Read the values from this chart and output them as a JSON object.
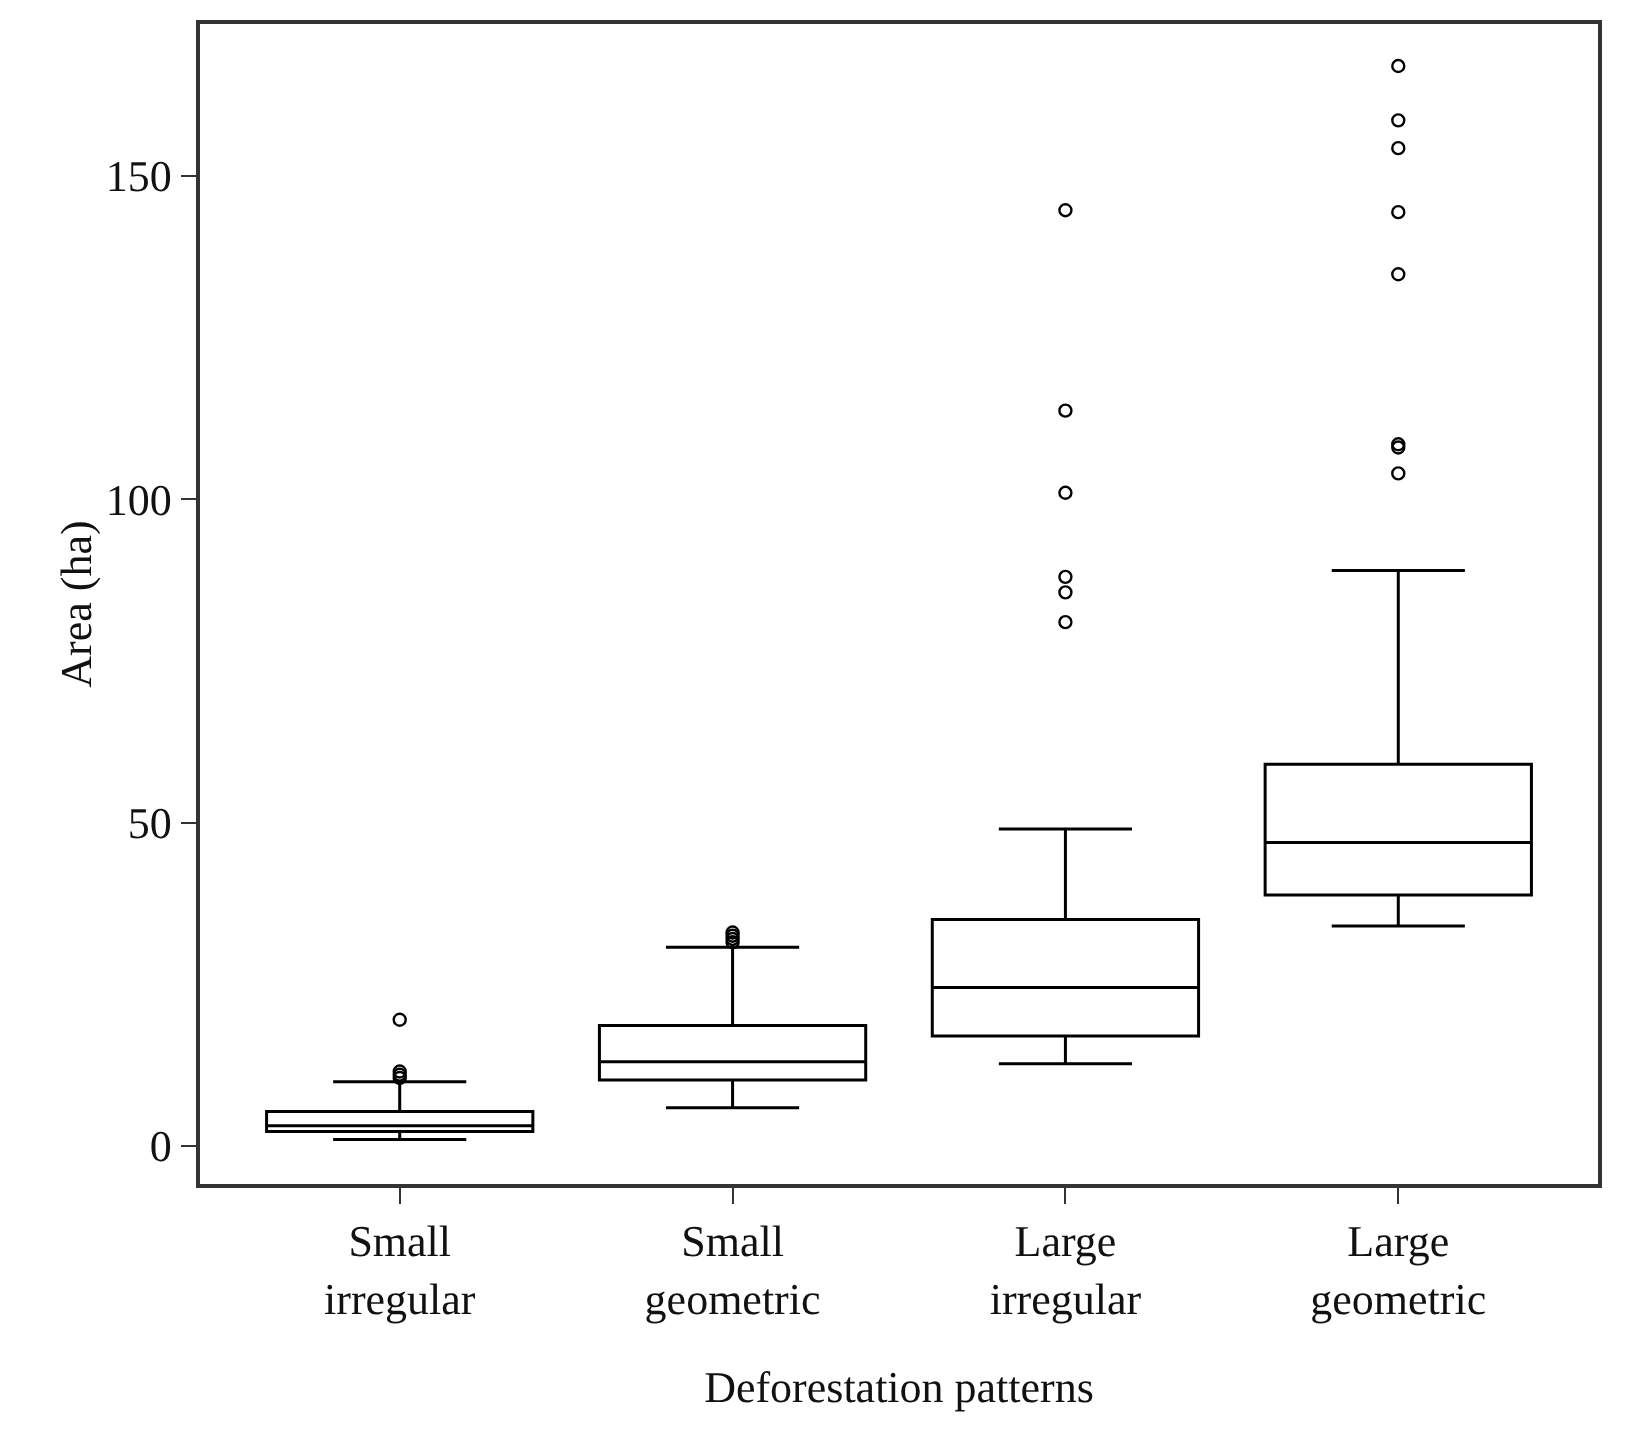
{
  "chart_data": {
    "type": "box",
    "xlabel": "Deforestation patterns",
    "ylabel": "Area (ha)",
    "categories": [
      "Small\nirregular",
      "Small\ngeometric",
      "Large\nirregular",
      "Large\ngeometric"
    ],
    "boxes": [
      {
        "low": 1,
        "q1": 2.2,
        "median": 3.1,
        "q3": 5.3,
        "high": 9.9,
        "outliers": [
          10.5,
          11,
          11.5,
          19.5
        ]
      },
      {
        "low": 5.9,
        "q1": 10.2,
        "median": 13,
        "q3": 18.6,
        "high": 30.7,
        "outliers": [
          31.5,
          32,
          32.5,
          33
        ]
      },
      {
        "low": 12.7,
        "q1": 17,
        "median": 24.5,
        "q3": 35,
        "high": 49,
        "outliers": [
          81,
          85.6,
          88,
          101,
          113.7,
          144.7
        ]
      },
      {
        "low": 34,
        "q1": 38.8,
        "median": 46.9,
        "q3": 59,
        "high": 89,
        "outliers": [
          104,
          108,
          108.5,
          134.8,
          144.4,
          154.3,
          158.6,
          167
        ]
      }
    ],
    "color": "#000000",
    "ylim": [
      -5.9,
      173.5
    ],
    "yticks": [
      0,
      50,
      100,
      150
    ],
    "grid": false,
    "marker": "circle"
  }
}
